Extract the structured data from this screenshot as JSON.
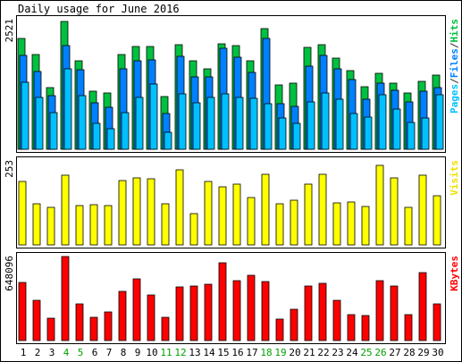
{
  "chart_data": [
    {
      "type": "bar",
      "title": "Daily usage for June 2016",
      "y_max_label": "2521",
      "right_label_parts": [
        {
          "text": "Pages",
          "color": "#00c0ff"
        },
        {
          "text": "/",
          "color": "#303030"
        },
        {
          "text": "Files",
          "color": "#0080ff"
        },
        {
          "text": "/",
          "color": "#303030"
        },
        {
          "text": "Hits",
          "color": "#00c040"
        }
      ],
      "categories": [
        "1",
        "2",
        "3",
        "4",
        "5",
        "6",
        "7",
        "8",
        "9",
        "10",
        "11",
        "12",
        "13",
        "14",
        "15",
        "16",
        "17",
        "18",
        "19",
        "20",
        "21",
        "22",
        "23",
        "24",
        "25",
        "26",
        "27",
        "28",
        "29",
        "30"
      ],
      "weekend_days": [
        "4",
        "5",
        "11",
        "12",
        "18",
        "19",
        "25",
        "26"
      ],
      "ylim": [
        0,
        2521
      ],
      "series": [
        {
          "name": "Hits",
          "color": "#00c040",
          "values": [
            2150,
            1850,
            1200,
            2490,
            1720,
            1130,
            1100,
            1850,
            2000,
            2000,
            1030,
            2030,
            1720,
            1560,
            2060,
            2020,
            1720,
            2340,
            1250,
            1290,
            1990,
            2030,
            1770,
            1530,
            1210,
            1470,
            1290,
            1090,
            1320,
            1440
          ]
        },
        {
          "name": "Files",
          "color": "#0080ff",
          "values": [
            1820,
            1520,
            1040,
            2010,
            1540,
            910,
            820,
            1560,
            1720,
            1730,
            700,
            1810,
            1410,
            1400,
            1960,
            1790,
            1500,
            2150,
            890,
            840,
            1620,
            1820,
            1570,
            1350,
            980,
            1280,
            1140,
            920,
            1130,
            1200
          ]
        },
        {
          "name": "Pages",
          "color": "#00c0ff",
          "values": [
            1300,
            1000,
            720,
            1560,
            1050,
            510,
            400,
            710,
            1000,
            1270,
            330,
            1080,
            900,
            1000,
            1080,
            1000,
            990,
            890,
            610,
            500,
            930,
            1100,
            970,
            690,
            620,
            1060,
            780,
            520,
            600,
            1060
          ]
        }
      ]
    },
    {
      "type": "bar",
      "y_max_label": "253",
      "right_label_parts": [
        {
          "text": "Visits",
          "color": "#f0e000"
        }
      ],
      "categories": [
        "1",
        "2",
        "3",
        "4",
        "5",
        "6",
        "7",
        "8",
        "9",
        "10",
        "11",
        "12",
        "13",
        "14",
        "15",
        "16",
        "17",
        "18",
        "19",
        "20",
        "21",
        "22",
        "23",
        "24",
        "25",
        "26",
        "27",
        "28",
        "29",
        "30"
      ],
      "ylim": [
        0,
        253
      ],
      "series": [
        {
          "name": "Visits",
          "color": "#ffff00",
          "values": [
            190,
            124,
            114,
            209,
            118,
            121,
            119,
            193,
            202,
            198,
            125,
            226,
            93,
            192,
            175,
            184,
            143,
            212,
            125,
            135,
            182,
            212,
            127,
            129,
            116,
            240,
            203,
            113,
            210,
            147
          ]
        }
      ]
    },
    {
      "type": "bar",
      "y_max_label": "648096",
      "right_label_parts": [
        {
          "text": "KBytes",
          "color": "#ff0000"
        }
      ],
      "categories": [
        "1",
        "2",
        "3",
        "4",
        "5",
        "6",
        "7",
        "8",
        "9",
        "10",
        "11",
        "12",
        "13",
        "14",
        "15",
        "16",
        "17",
        "18",
        "19",
        "20",
        "21",
        "22",
        "23",
        "24",
        "25",
        "26",
        "27",
        "28",
        "29",
        "30"
      ],
      "ylim": [
        0,
        648096
      ],
      "series": [
        {
          "name": "KBytes",
          "color": "#ff0000",
          "values": [
            445000,
            312000,
            175000,
            649000,
            280000,
            182000,
            223000,
            380000,
            476000,
            354000,
            176000,
            412000,
            420000,
            436000,
            602000,
            459000,
            503000,
            456000,
            163000,
            239000,
            424000,
            443000,
            308000,
            201000,
            190000,
            459000,
            418000,
            201000,
            526000,
            281000
          ]
        }
      ]
    }
  ],
  "colors": {
    "background": "#ffffff",
    "panel_border": "#000000",
    "weekday_label": "#000000",
    "weekend_label": "#00a000"
  }
}
